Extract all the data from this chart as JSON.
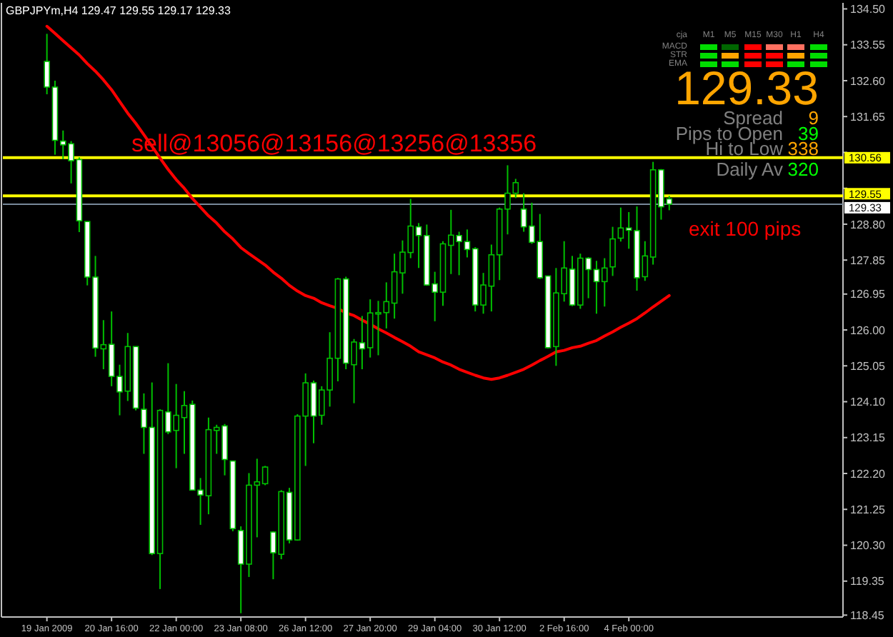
{
  "chart_data": {
    "type": "candlestick",
    "title": "GBPJPYm,H4 129.47 129.55 129.17 129.33",
    "categories": [
      "19 Jan 2009",
      null,
      null,
      null,
      null,
      null,
      null,
      null,
      "20 Jan 16:00",
      null,
      null,
      null,
      null,
      null,
      null,
      null,
      "22 Jan 00:00",
      null,
      null,
      null,
      null,
      null,
      null,
      null,
      "23 Jan 08:00",
      null,
      null,
      null,
      null,
      null,
      null,
      null,
      "26 Jan 12:00",
      null,
      null,
      null,
      null,
      null,
      null,
      null,
      "27 Jan 20:00",
      null,
      null,
      null,
      null,
      null,
      null,
      null,
      "29 Jan 04:00",
      null,
      null,
      null,
      null,
      null,
      null,
      null,
      "30 Jan 12:00",
      null,
      null,
      null,
      null,
      null,
      null,
      null,
      "2 Feb 16:00",
      null,
      null,
      null,
      null,
      null,
      null,
      null,
      "4 Feb 00:00",
      null,
      null,
      null,
      null,
      null,
      null,
      null,
      null,
      null,
      null,
      null,
      null,
      null,
      null,
      null,
      null,
      null,
      null,
      null,
      null,
      null,
      null,
      null,
      null,
      null,
      null
    ],
    "series": [
      {
        "type": "line",
        "color": "#ff0000",
        "values": [
          134.04,
          133.85,
          133.66,
          133.47,
          133.28,
          133.05,
          132.85,
          132.62,
          132.36,
          132.05,
          131.74,
          131.47,
          131.17,
          130.86,
          130.55,
          130.25,
          129.98,
          129.75,
          129.48,
          129.25,
          129.02,
          128.83,
          128.6,
          128.41,
          128.18,
          128.02,
          127.87,
          127.72,
          127.53,
          127.37,
          127.18,
          127.03,
          126.91,
          126.84,
          126.72,
          126.64,
          126.57,
          126.45,
          126.38,
          126.26,
          126.15,
          126.03,
          125.92,
          125.8,
          125.69,
          125.57,
          125.42,
          125.34,
          125.26,
          125.15,
          125.07,
          124.96,
          124.88,
          124.8,
          124.73,
          124.69,
          124.73,
          124.8,
          124.88,
          124.96,
          125.07,
          125.19,
          125.3,
          125.42,
          125.46,
          125.53,
          125.57,
          125.65,
          125.72,
          125.84,
          125.95,
          126.07,
          126.18,
          126.3,
          126.45,
          126.61,
          126.76,
          126.91,
          null,
          null,
          null,
          null,
          null,
          null,
          null,
          null,
          null,
          null,
          null,
          null,
          null,
          null,
          null,
          null,
          null,
          null,
          null,
          null,
          null
        ]
      },
      {
        "color": "#00c000",
        "ohlc": [
          [
            133.11,
            133.84,
            132.24,
            132.43
          ],
          [
            132.43,
            132.6,
            130.64,
            131.02
          ],
          [
            131.0,
            131.28,
            130.52,
            130.9
          ],
          [
            130.93,
            131.0,
            129.88,
            130.48
          ],
          [
            130.51,
            130.57,
            128.59,
            128.89
          ],
          [
            128.87,
            128.87,
            127.18,
            127.4
          ],
          [
            127.4,
            127.96,
            125.29,
            125.52
          ],
          [
            125.5,
            126.26,
            124.96,
            125.61
          ],
          [
            125.62,
            126.49,
            124.51,
            124.77
          ],
          [
            124.77,
            125.08,
            123.74,
            124.36
          ],
          [
            124.38,
            125.92,
            124.12,
            125.56
          ],
          [
            125.56,
            125.56,
            123.87,
            123.93
          ],
          [
            123.9,
            124.32,
            122.72,
            123.42
          ],
          [
            123.42,
            124.61,
            120.04,
            120.08
          ],
          [
            120.08,
            123.9,
            119.14,
            123.87
          ],
          [
            123.83,
            125.12,
            123.24,
            123.3
          ],
          [
            123.34,
            124.57,
            122.34,
            123.74
          ],
          [
            123.68,
            124.38,
            122.72,
            124.0
          ],
          [
            124.03,
            124.13,
            121.76,
            121.76
          ],
          [
            121.76,
            122.08,
            120.84,
            121.63
          ],
          [
            121.61,
            123.68,
            121.12,
            123.36
          ],
          [
            123.34,
            123.49,
            122.72,
            123.42
          ],
          [
            123.46,
            123.51,
            122.15,
            122.57
          ],
          [
            122.53,
            122.53,
            120.67,
            120.74
          ],
          [
            120.69,
            120.8,
            118.5,
            119.8
          ],
          [
            119.8,
            122.21,
            119.46,
            121.89
          ],
          [
            121.89,
            122.59,
            120.51,
            121.98
          ],
          [
            121.93,
            122.4,
            121.89,
            122.37
          ],
          [
            120.65,
            120.67,
            119.4,
            120.1
          ],
          [
            120.06,
            121.76,
            119.93,
            121.72
          ],
          [
            121.7,
            121.82,
            120.35,
            120.44
          ],
          [
            120.44,
            123.77,
            120.42,
            123.72
          ],
          [
            123.72,
            124.85,
            122.4,
            124.6
          ],
          [
            124.6,
            124.66,
            123.0,
            123.72
          ],
          [
            123.74,
            124.51,
            123.49,
            124.41
          ],
          [
            124.41,
            125.94,
            123.97,
            125.25
          ],
          [
            125.25,
            127.38,
            124.64,
            127.35
          ],
          [
            127.35,
            127.41,
            124.96,
            125.12
          ],
          [
            125.08,
            125.76,
            124.06,
            125.68
          ],
          [
            125.66,
            126.37,
            124.96,
            125.5
          ],
          [
            125.53,
            126.81,
            125.27,
            126.45
          ],
          [
            126.43,
            126.77,
            125.33,
            126.46
          ],
          [
            126.46,
            127.26,
            126.04,
            126.75
          ],
          [
            126.71,
            128.02,
            126.3,
            127.54
          ],
          [
            127.51,
            128.37,
            126.96,
            128.06
          ],
          [
            128.05,
            129.47,
            127.9,
            128.75
          ],
          [
            128.73,
            128.83,
            127.64,
            128.5
          ],
          [
            128.5,
            128.79,
            127.17,
            127.19
          ],
          [
            127.22,
            127.54,
            126.23,
            127.0
          ],
          [
            127.0,
            128.35,
            126.64,
            128.28
          ],
          [
            128.24,
            129.18,
            127.48,
            128.51
          ],
          [
            128.5,
            128.6,
            127.45,
            128.34
          ],
          [
            128.34,
            128.66,
            127.92,
            128.13
          ],
          [
            128.15,
            128.19,
            126.49,
            126.66
          ],
          [
            126.66,
            127.51,
            126.43,
            127.19
          ],
          [
            127.16,
            128.26,
            126.49,
            127.99
          ],
          [
            127.99,
            129.24,
            127.32,
            129.2
          ],
          [
            129.2,
            130.36,
            128.53,
            129.62
          ],
          [
            129.62,
            130.0,
            129.49,
            129.9
          ],
          [
            129.2,
            129.62,
            128.6,
            128.73
          ],
          [
            128.75,
            129.37,
            128.28,
            128.32
          ],
          [
            128.34,
            129.07,
            127.35,
            127.38
          ],
          [
            127.43,
            127.43,
            125.51,
            125.53
          ],
          [
            125.56,
            127.64,
            125.05,
            126.98
          ],
          [
            126.96,
            128.35,
            126.75,
            127.64
          ],
          [
            127.61,
            127.96,
            126.63,
            126.66
          ],
          [
            126.66,
            128.02,
            126.56,
            127.9
          ],
          [
            127.9,
            127.93,
            126.84,
            127.6
          ],
          [
            127.6,
            127.83,
            126.43,
            127.28
          ],
          [
            127.28,
            127.9,
            126.62,
            127.64
          ],
          [
            127.67,
            128.73,
            127.43,
            128.41
          ],
          [
            128.43,
            129.24,
            128.34,
            128.7
          ],
          [
            128.7,
            129.12,
            128.15,
            128.64
          ],
          [
            128.63,
            129.27,
            127.04,
            127.38
          ],
          [
            127.41,
            128.35,
            127.3,
            127.96
          ],
          [
            127.93,
            130.45,
            127.73,
            130.24
          ],
          [
            130.24,
            130.26,
            128.92,
            129.26
          ],
          [
            129.47,
            129.55,
            129.17,
            129.33
          ],
          null,
          null,
          null,
          null,
          null,
          null,
          null,
          null,
          null,
          null,
          null,
          null,
          null,
          null,
          null,
          null,
          null,
          null,
          null,
          null,
          null
        ]
      }
    ],
    "ylim": [
      118.4,
      134.66
    ],
    "yticks": [
      {
        "value": 134.5,
        "label": "134.50"
      },
      {
        "value": 133.55,
        "label": "133.55"
      },
      {
        "value": 132.6,
        "label": "132.60"
      },
      {
        "value": 131.65,
        "label": "131.65"
      },
      {
        "value": 130.7,
        "label": null
      },
      {
        "value": 129.75,
        "label": null
      },
      {
        "value": 128.8,
        "label": "128.80"
      },
      {
        "value": 127.85,
        "label": "127.85"
      },
      {
        "value": 126.95,
        "label": "126.95"
      },
      {
        "value": 126.0,
        "label": "126.00"
      },
      {
        "value": 125.05,
        "label": "125.05"
      },
      {
        "value": 124.1,
        "label": "124.10"
      },
      {
        "value": 123.15,
        "label": "123.15"
      },
      {
        "value": 122.2,
        "label": "122.20"
      },
      {
        "value": 121.25,
        "label": "121.25"
      },
      {
        "value": 120.3,
        "label": "120.30"
      },
      {
        "value": 119.35,
        "label": "119.35"
      },
      {
        "value": 118.45,
        "label": "118.45"
      }
    ],
    "ref_lines": [
      {
        "axis": "y",
        "value": 130.56,
        "label": "130.56",
        "color": "#ffff00"
      },
      {
        "axis": "y",
        "value": 129.55,
        "label": "129.55",
        "color": "#ffff00"
      },
      {
        "axis": "y",
        "value": 129.33,
        "label": "129.33",
        "color": "#778899"
      }
    ],
    "annotations": [
      "sell@13056@13156@13256@13356",
      "exit 100 pips",
      "129.33",
      "Spread",
      "9",
      "Pips to Open",
      "39",
      "Hi to Low",
      "338",
      "Daily Av",
      "320",
      "cja",
      "M1",
      "M5",
      "M15",
      "M30",
      "H1",
      "H4",
      "MACD",
      "STR",
      "EMA"
    ]
  }
}
